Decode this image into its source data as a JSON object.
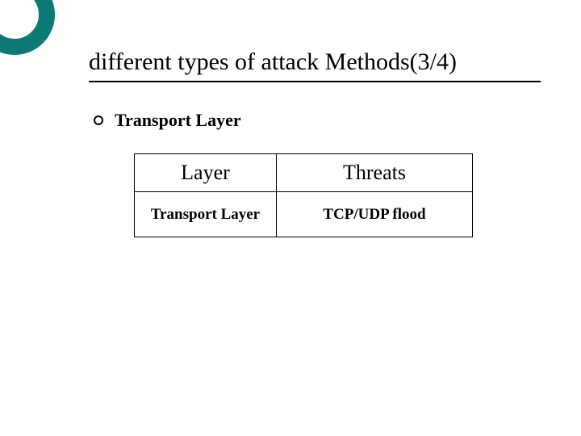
{
  "decor": {
    "border_color": "#0b7a73",
    "fill_color": "#ffffff"
  },
  "title": "different types of attack Methods(3/4)",
  "bullet": {
    "text": "Transport Layer"
  },
  "table": {
    "columns": [
      "Layer",
      "Threats"
    ],
    "rows": [
      [
        "Transport Layer",
        "TCP/UDP flood"
      ]
    ],
    "border_color": "#000000",
    "header_fontsize": 26,
    "cell_fontsize": 19
  },
  "background_color": "#ffffff"
}
